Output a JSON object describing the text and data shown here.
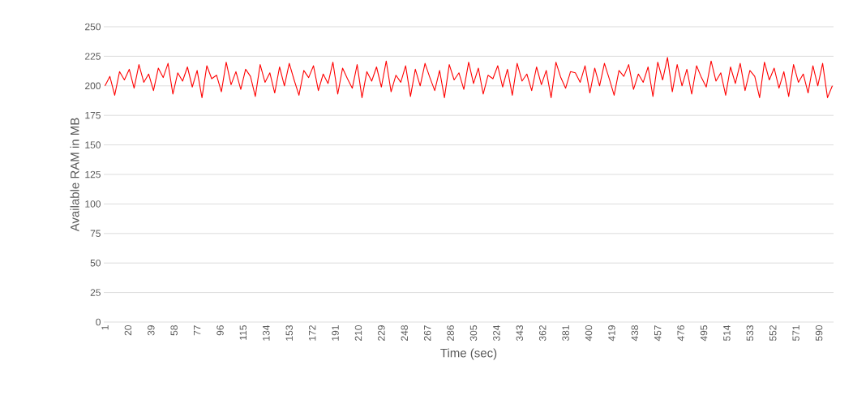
{
  "chart_data": {
    "type": "line",
    "xlabel": "Time (sec)",
    "ylabel": "Available RAM in MB",
    "x": [
      1,
      5,
      9,
      13,
      17,
      21,
      25,
      29,
      33,
      37,
      41,
      45,
      49,
      53,
      57,
      61,
      65,
      69,
      73,
      77,
      81,
      85,
      89,
      93,
      97,
      101,
      105,
      109,
      113,
      117,
      121,
      125,
      129,
      133,
      137,
      141,
      145,
      149,
      153,
      157,
      161,
      165,
      169,
      173,
      177,
      181,
      185,
      189,
      193,
      197,
      201,
      205,
      209,
      213,
      217,
      221,
      225,
      229,
      233,
      237,
      241,
      245,
      249,
      253,
      257,
      261,
      265,
      269,
      273,
      277,
      281,
      285,
      289,
      293,
      297,
      301,
      305,
      309,
      313,
      317,
      321,
      325,
      329,
      333,
      337,
      341,
      345,
      349,
      353,
      357,
      361,
      365,
      369,
      373,
      377,
      381,
      385,
      389,
      393,
      397,
      401,
      405,
      409,
      413,
      417,
      421,
      425,
      429,
      433,
      437,
      441,
      445,
      449,
      453,
      457,
      461,
      465,
      469,
      473,
      477,
      481,
      485,
      489,
      493,
      497,
      501,
      505,
      509,
      513,
      517,
      521,
      525,
      529,
      533,
      537,
      541,
      545,
      549,
      553,
      557,
      561,
      565,
      569,
      573,
      577,
      581,
      585,
      589,
      593,
      597,
      601
    ],
    "series": [
      {
        "color": "#ff0000",
        "values": [
          200,
          208,
          192,
          212,
          205,
          214,
          198,
          218,
          203,
          210,
          196,
          215,
          207,
          219,
          193,
          211,
          204,
          216,
          199,
          213,
          190,
          217,
          206,
          209,
          195,
          220,
          201,
          212,
          197,
          214,
          208,
          191,
          218,
          203,
          211,
          194,
          216,
          200,
          219,
          205,
          192,
          213,
          207,
          217,
          196,
          210,
          202,
          220,
          193,
          215,
          206,
          198,
          218,
          190,
          212,
          204,
          216,
          199,
          221,
          195,
          209,
          203,
          217,
          191,
          214,
          200,
          219,
          207,
          196,
          213,
          190,
          218,
          205,
          211,
          197,
          220,
          202,
          215,
          193,
          209,
          206,
          217,
          199,
          214,
          192,
          219,
          204,
          210,
          196,
          216,
          201,
          213,
          190,
          220,
          207,
          198,
          212,
          211,
          203,
          217,
          194,
          215,
          200,
          219,
          206,
          192,
          213,
          208,
          218,
          197,
          210,
          203,
          216,
          191,
          220,
          205,
          224,
          195,
          218,
          200,
          214,
          193,
          217,
          207,
          199,
          221,
          204,
          211,
          192,
          216,
          202,
          219,
          196,
          213,
          208,
          190,
          220,
          205,
          215,
          198,
          212,
          191,
          218,
          203,
          210,
          194,
          217,
          200,
          219,
          190,
          200
        ]
      }
    ],
    "xlim": [
      0,
      602
    ],
    "ylim": [
      0,
      250
    ],
    "xticks": [
      1,
      20,
      39,
      58,
      77,
      96,
      115,
      134,
      153,
      172,
      191,
      210,
      229,
      248,
      267,
      286,
      305,
      324,
      343,
      362,
      381,
      400,
      419,
      438,
      457,
      476,
      495,
      514,
      533,
      552,
      571,
      590
    ],
    "yticks": [
      0,
      25,
      50,
      75,
      100,
      125,
      150,
      175,
      200,
      225,
      250
    ],
    "grid": "y"
  }
}
